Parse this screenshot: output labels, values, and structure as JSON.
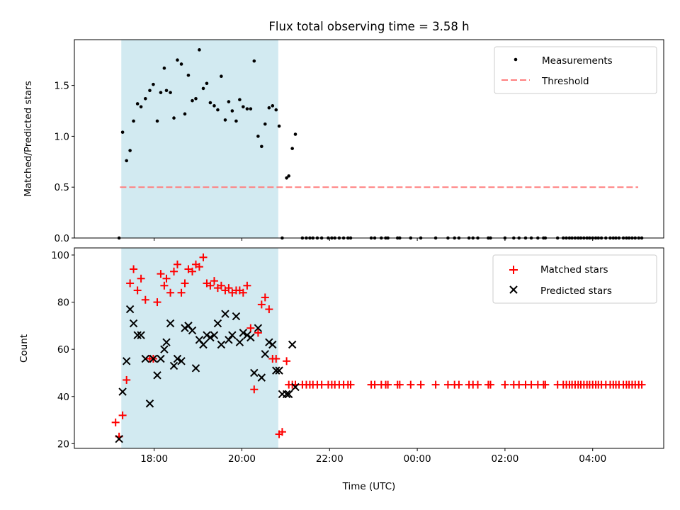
{
  "figure": {
    "title": "Flux total observing time = 3.58 h",
    "xlabel": "Time (UTC)",
    "x_ticks": [
      "18:00",
      "20:00",
      "22:00",
      "00:00",
      "02:00",
      "04:00"
    ],
    "x_tick_hours": [
      18,
      20,
      22,
      24,
      26,
      28
    ],
    "x_range": [
      16.18,
      29.62
    ],
    "x_unit_note": "hours after 00:00 UTC of day 1 (24 = 00:00 next day)",
    "shaded_window": [
      17.25,
      20.83
    ],
    "shade_color": "#add8e6"
  },
  "chart_data": [
    {
      "type": "scatter",
      "ylabel": "Matched/Predicted stars",
      "ylim": [
        0,
        1.95
      ],
      "y_ticks": [
        "0.0",
        "0.5",
        "1.0",
        "1.5"
      ],
      "y_tick_values": [
        0,
        0.5,
        1.0,
        1.5
      ],
      "legend_position": "top-right",
      "threshold": {
        "name": "Threshold",
        "y": 0.5,
        "x_range": [
          17.22,
          29.62
        ],
        "color": "#ff7f7f"
      },
      "series": [
        {
          "name": "Measurements",
          "color": "#000000",
          "marker": "dot",
          "x": [
            17.2,
            17.28,
            17.37,
            17.45,
            17.53,
            17.62,
            17.7,
            17.8,
            17.9,
            17.98,
            18.07,
            18.15,
            18.23,
            18.28,
            18.37,
            18.45,
            18.53,
            18.62,
            18.7,
            18.78,
            18.87,
            18.95,
            19.03,
            19.12,
            19.2,
            19.28,
            19.37,
            19.45,
            19.53,
            19.62,
            19.7,
            19.78,
            19.87,
            19.95,
            20.03,
            20.12,
            20.2,
            20.28,
            20.37,
            20.45,
            20.53,
            20.62,
            20.7,
            20.78,
            20.85,
            20.92,
            21.02,
            21.07,
            21.15,
            21.22,
            21.38,
            21.47,
            21.55,
            21.62,
            21.72,
            21.82,
            21.97,
            22.05,
            22.12,
            22.22,
            22.32,
            22.42,
            22.48,
            22.95,
            23.03,
            23.18,
            23.28,
            23.33,
            23.55,
            23.6,
            23.85,
            24.08,
            24.42,
            24.7,
            24.85,
            24.95,
            25.18,
            25.27,
            25.38,
            25.62,
            25.67,
            26.0,
            26.2,
            26.32,
            26.47,
            26.6,
            26.75,
            26.88,
            26.92,
            27.2,
            27.33,
            27.4,
            27.47,
            27.53,
            27.6,
            27.67,
            27.73,
            27.8,
            27.87,
            27.93,
            28.0,
            28.07,
            28.13,
            28.2,
            28.3,
            28.4,
            28.47,
            28.53,
            28.6,
            28.7,
            28.77,
            28.83,
            28.9,
            28.97,
            29.05,
            29.12
          ],
          "y": [
            0.0,
            1.04,
            0.76,
            0.86,
            1.15,
            1.32,
            1.29,
            1.37,
            1.45,
            1.51,
            1.15,
            1.43,
            1.67,
            1.45,
            1.43,
            1.18,
            1.75,
            1.71,
            1.22,
            1.6,
            1.35,
            1.37,
            1.85,
            1.47,
            1.52,
            1.33,
            1.3,
            1.26,
            1.59,
            1.16,
            1.34,
            1.25,
            1.15,
            1.36,
            1.29,
            1.27,
            1.27,
            1.74,
            1.0,
            0.9,
            1.12,
            1.28,
            1.3,
            1.26,
            1.1,
            0.0,
            0.59,
            0.61,
            0.88,
            1.02,
            0.0,
            0.0,
            0.0,
            0.0,
            0.0,
            0.0,
            0.0,
            0.0,
            0.0,
            0.0,
            0.0,
            0.0,
            0.0,
            0.0,
            0.0,
            0.0,
            0.0,
            0.0,
            0.0,
            0.0,
            0.0,
            0.0,
            0.0,
            0.0,
            0.0,
            0.0,
            0.0,
            0.0,
            0.0,
            0.0,
            0.0,
            0.0,
            0.0,
            0.0,
            0.0,
            0.0,
            0.0,
            0.0,
            0.0,
            0.0,
            0.0,
            0.0,
            0.0,
            0.0,
            0.0,
            0.0,
            0.0,
            0.0,
            0.0,
            0.0,
            0.0,
            0.0,
            0.0,
            0.0,
            0.0,
            0.0,
            0.0,
            0.0,
            0.0,
            0.0,
            0.0,
            0.0,
            0.0,
            0.0,
            0.0,
            0.0
          ]
        }
      ]
    },
    {
      "type": "scatter",
      "ylabel": "Count",
      "ylim": [
        18,
        103
      ],
      "y_ticks": [
        "20",
        "40",
        "60",
        "80",
        "100"
      ],
      "y_tick_values": [
        20,
        40,
        60,
        80,
        100
      ],
      "legend_position": "top-right",
      "series": [
        {
          "name": "Matched stars",
          "color": "#ff0000",
          "marker": "plus",
          "x": [
            17.12,
            17.2,
            17.28,
            17.37,
            17.45,
            17.53,
            17.62,
            17.7,
            17.8,
            17.9,
            17.98,
            18.07,
            18.15,
            18.23,
            18.28,
            18.37,
            18.45,
            18.53,
            18.62,
            18.7,
            18.78,
            18.87,
            18.95,
            19.03,
            19.12,
            19.2,
            19.28,
            19.37,
            19.45,
            19.53,
            19.62,
            19.7,
            19.78,
            19.87,
            19.95,
            20.03,
            20.12,
            20.2,
            20.28,
            20.37,
            20.45,
            20.53,
            20.62,
            20.7,
            20.78,
            20.85,
            20.92,
            21.02,
            21.07,
            21.15,
            21.22,
            21.38,
            21.47,
            21.55,
            21.62,
            21.72,
            21.82,
            21.97,
            22.05,
            22.12,
            22.22,
            22.32,
            22.42,
            22.48,
            22.95,
            23.03,
            23.18,
            23.28,
            23.33,
            23.55,
            23.6,
            23.85,
            24.08,
            24.42,
            24.7,
            24.85,
            24.95,
            25.18,
            25.27,
            25.38,
            25.62,
            25.67,
            26.0,
            26.2,
            26.32,
            26.47,
            26.6,
            26.75,
            26.88,
            26.92,
            27.2,
            27.33,
            27.4,
            27.47,
            27.53,
            27.6,
            27.67,
            27.73,
            27.8,
            27.87,
            27.93,
            28.0,
            28.07,
            28.13,
            28.2,
            28.3,
            28.4,
            28.47,
            28.53,
            28.6,
            28.7,
            28.77,
            28.83,
            28.9,
            28.97,
            29.05,
            29.12
          ],
          "y": [
            29,
            23,
            32,
            47,
            88,
            94,
            85,
            90,
            81,
            56,
            56,
            80,
            92,
            87,
            90,
            84,
            93,
            96,
            84,
            88,
            94,
            93,
            96,
            95,
            99,
            88,
            87,
            89,
            86,
            87,
            85,
            86,
            84,
            85,
            85,
            84,
            87,
            69,
            43,
            67,
            79,
            82,
            77,
            56,
            56,
            24,
            25,
            55,
            45,
            45,
            45,
            45,
            45,
            45,
            45,
            45,
            45,
            45,
            45,
            45,
            45,
            45,
            45,
            45,
            45,
            45,
            45,
            45,
            45,
            45,
            45,
            45,
            45,
            45,
            45,
            45,
            45,
            45,
            45,
            45,
            45,
            45,
            45,
            45,
            45,
            45,
            45,
            45,
            45,
            45,
            45,
            45,
            45,
            45,
            45,
            45,
            45,
            45,
            45,
            45,
            45,
            45,
            45,
            45,
            45,
            45,
            45,
            45,
            45,
            45,
            45,
            45,
            45,
            45,
            45,
            45,
            45
          ]
        },
        {
          "name": "Predicted stars",
          "color": "#000000",
          "marker": "x",
          "x": [
            17.2,
            17.28,
            17.37,
            17.45,
            17.53,
            17.62,
            17.7,
            17.8,
            17.9,
            17.98,
            18.07,
            18.15,
            18.23,
            18.28,
            18.37,
            18.45,
            18.53,
            18.62,
            18.7,
            18.78,
            18.87,
            18.95,
            19.03,
            19.12,
            19.2,
            19.28,
            19.37,
            19.45,
            19.53,
            19.62,
            19.7,
            19.78,
            19.87,
            19.95,
            20.03,
            20.12,
            20.2,
            20.28,
            20.37,
            20.45,
            20.53,
            20.62,
            20.7,
            20.78,
            20.85,
            20.92,
            21.02,
            21.07,
            21.15,
            21.22
          ],
          "y": [
            22,
            42,
            55,
            77,
            71,
            66,
            66,
            56,
            37,
            56,
            49,
            56,
            60,
            63,
            71,
            53,
            56,
            55,
            69,
            70,
            68,
            52,
            64,
            62,
            66,
            65,
            66,
            71,
            62,
            75,
            64,
            66,
            74,
            63,
            67,
            66,
            65,
            50,
            69,
            48,
            58,
            63,
            62,
            51,
            51,
            41,
            41,
            41,
            62,
            44
          ]
        }
      ]
    }
  ]
}
